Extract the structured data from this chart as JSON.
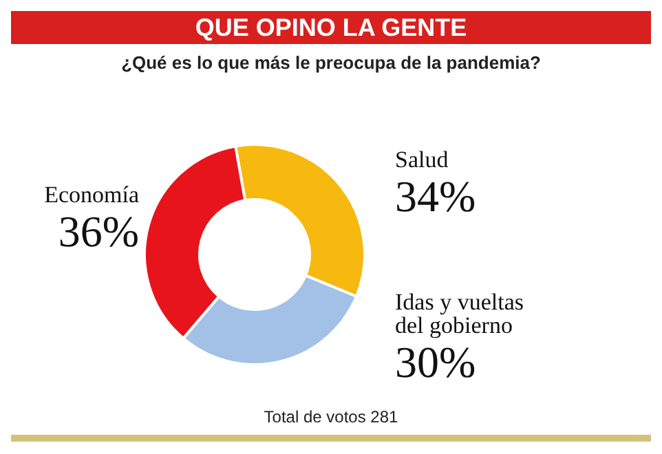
{
  "chart_data": {
    "type": "donut",
    "title": "QUE OPINO LA GENTE",
    "subtitle": "¿Qué es lo que más le preocupa de la pandemia?",
    "categories": [
      "Salud",
      "Idas y vueltas del gobierno",
      "Economía"
    ],
    "values": [
      34,
      30,
      36
    ],
    "value_labels": [
      "34%",
      "30%",
      "36%"
    ],
    "colors": [
      "#f7b90f",
      "#a3c1e6",
      "#e8141b"
    ],
    "annotations": [
      "Total de votos 281"
    ]
  }
}
